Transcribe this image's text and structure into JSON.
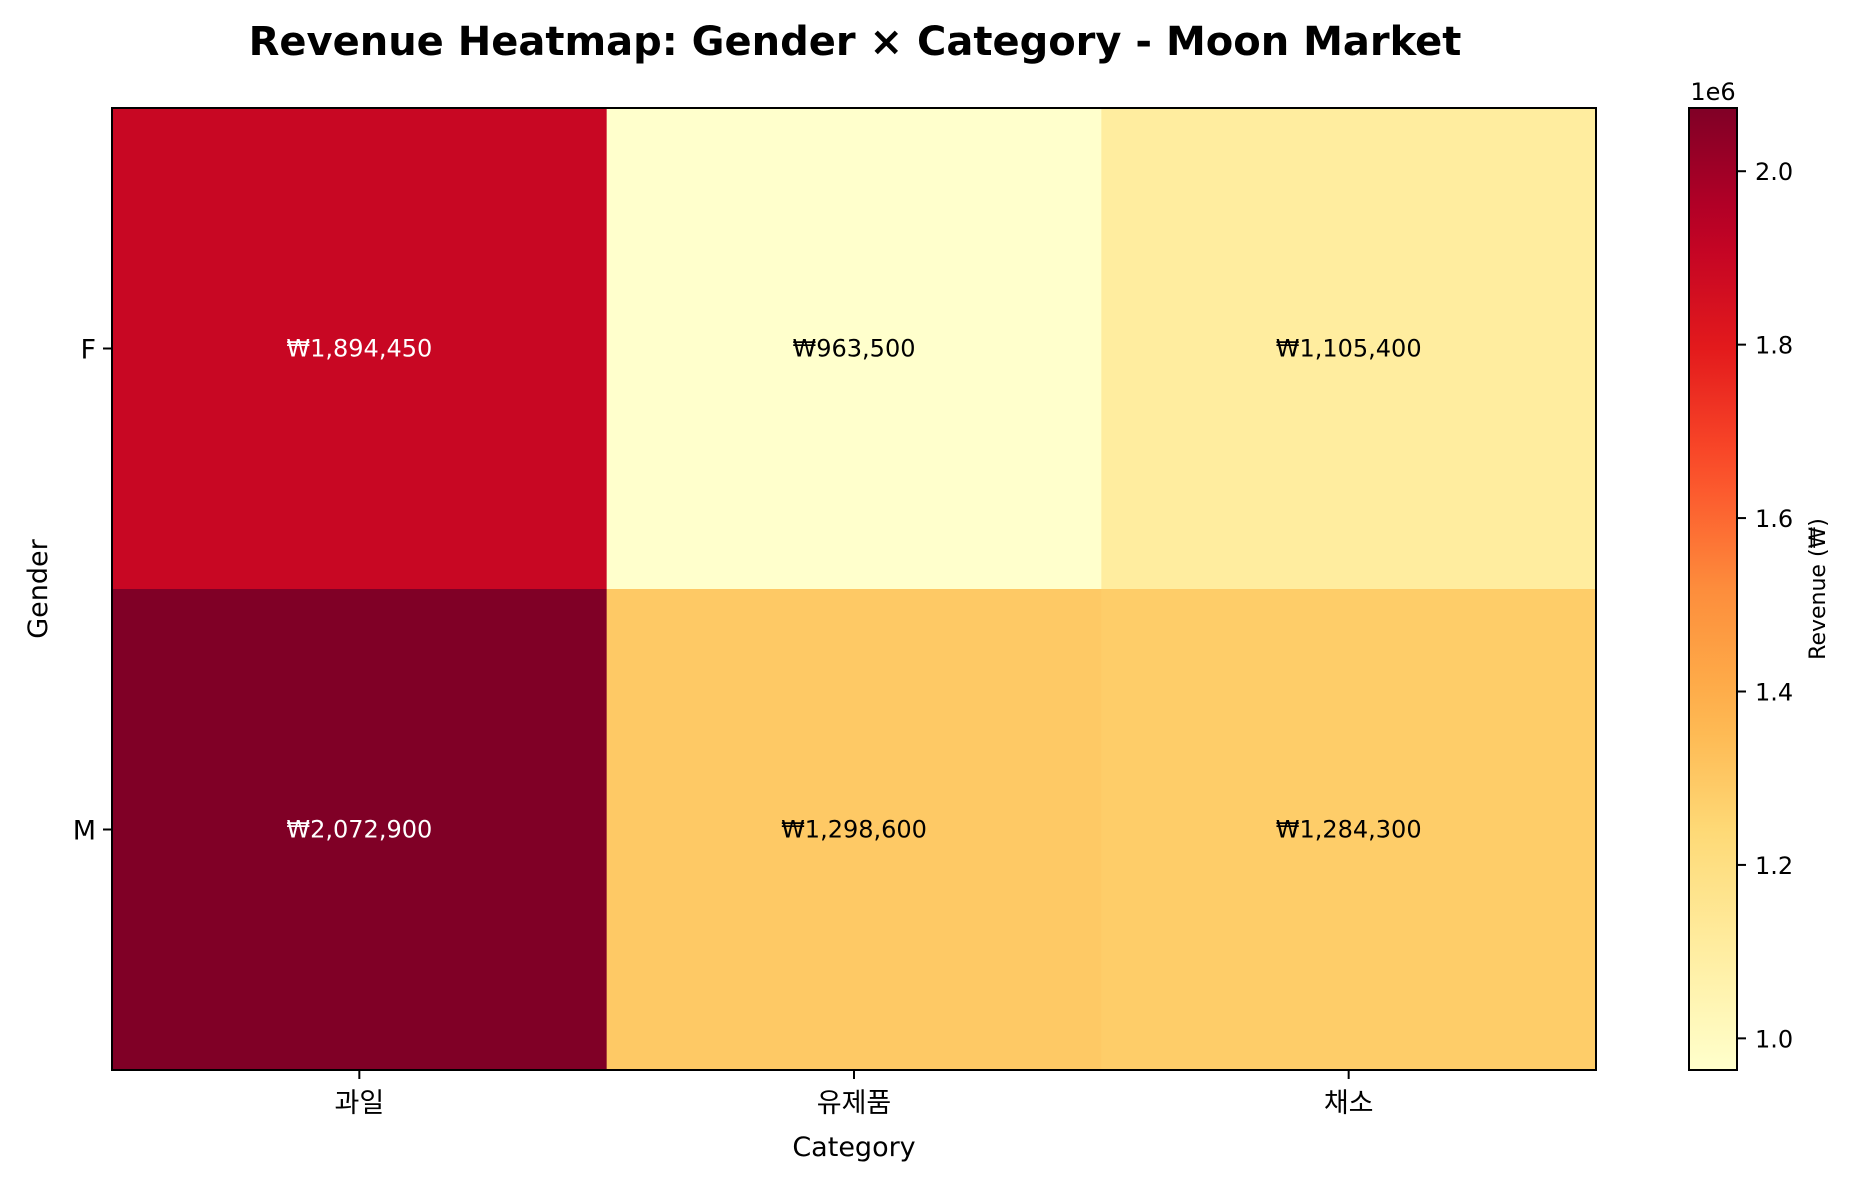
{
  "chart_data": {
    "type": "heatmap",
    "title": "Revenue Heatmap: Gender × Category - Moon Market",
    "xlabel": "Category",
    "ylabel": "Gender",
    "x_categories": [
      "과일",
      "유제품",
      "채소"
    ],
    "y_categories": [
      "F",
      "M"
    ],
    "values": [
      [
        1894450,
        963500,
        1105400
      ],
      [
        2072900,
        1298600,
        1284300
      ]
    ],
    "cell_labels": [
      [
        "₩1,894,450",
        "₩963,500",
        "₩1,105,400"
      ],
      [
        "₩2,072,900",
        "₩1,298,600",
        "₩1,284,300"
      ]
    ],
    "colorbar": {
      "label": "Revenue (₩)",
      "offset_label": "1e6",
      "range": [
        963500,
        2072900
      ],
      "ticks": [
        1.0,
        1.2,
        1.4,
        1.6,
        1.8,
        2.0
      ],
      "tick_labels": [
        "1.0",
        "1.2",
        "1.4",
        "1.6",
        "1.8",
        "2.0"
      ],
      "tick_scale": 1000000
    },
    "colormap": [
      "#ffffcc",
      "#ffeda0",
      "#fed976",
      "#feb24c",
      "#fd8d3c",
      "#fc4e2a",
      "#e31a1c",
      "#bd0026",
      "#800026"
    ],
    "grid": false
  }
}
